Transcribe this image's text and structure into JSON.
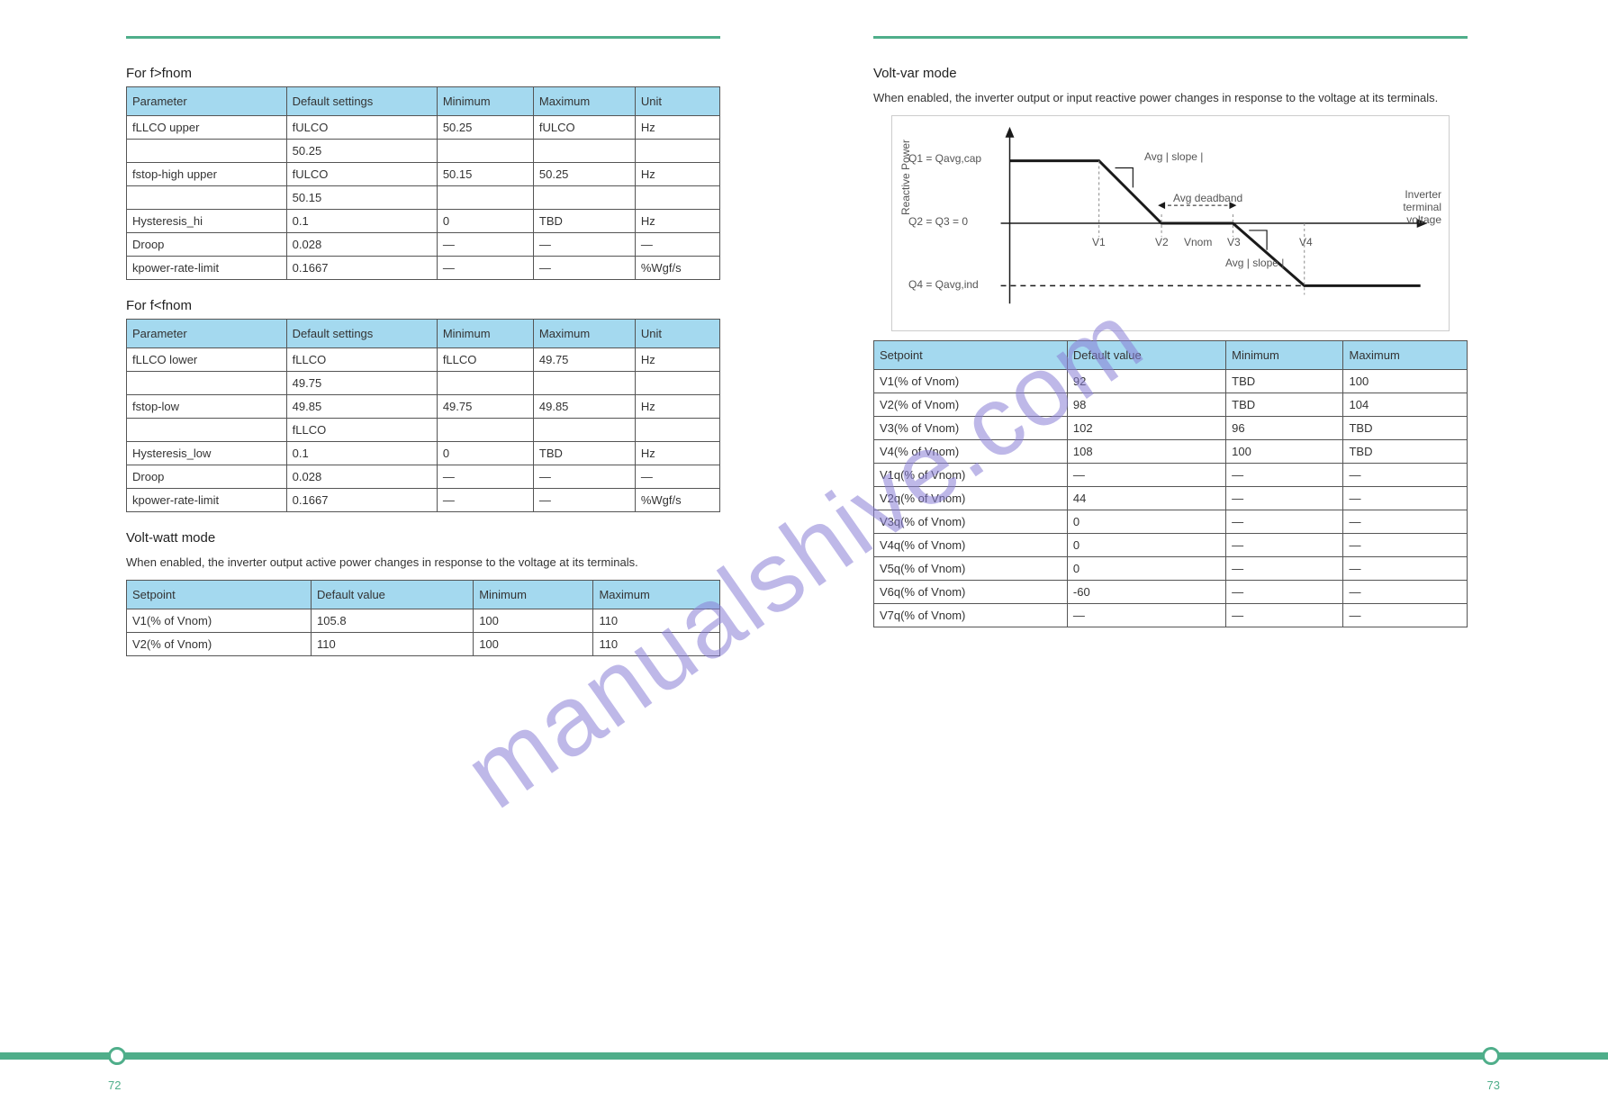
{
  "watermark": "manualshive.com",
  "left": {
    "section_a": {
      "title": "For f>fnom",
      "headers": [
        "Parameter",
        "Default settings",
        "Minimum",
        "Maximum",
        "Unit"
      ],
      "rows": [
        [
          "fLLCO upper",
          "fULCO",
          "50.25",
          "fULCO",
          "Hz"
        ],
        [
          "",
          "50.25",
          "",
          "",
          ""
        ],
        [
          "fstop-high upper",
          "fULCO",
          "50.15",
          "50.25",
          "Hz"
        ],
        [
          "",
          "50.15",
          "",
          "",
          ""
        ],
        [
          "Hysteresis_hi",
          "0.1",
          "0",
          "TBD",
          "Hz"
        ],
        [
          "Droop",
          "0.028",
          "—",
          "—",
          "—"
        ],
        [
          "kpower-rate-limit",
          "0.1667",
          "—",
          "—",
          "%Wgf/s"
        ]
      ]
    },
    "section_b": {
      "title": "For f<fnom",
      "headers": [
        "Parameter",
        "Default settings",
        "Minimum",
        "Maximum",
        "Unit"
      ],
      "rows": [
        [
          "fLLCO lower",
          "fLLCO",
          "fLLCO",
          "49.75",
          "Hz"
        ],
        [
          "",
          "49.75",
          "",
          "",
          ""
        ],
        [
          "fstop-low",
          "49.85",
          "49.75",
          "49.85",
          "Hz"
        ],
        [
          "",
          "fLLCO",
          "",
          "",
          ""
        ],
        [
          "Hysteresis_low",
          "0.1",
          "0",
          "TBD",
          "Hz"
        ],
        [
          "Droop",
          "0.028",
          "—",
          "—",
          "—"
        ],
        [
          "kpower-rate-limit",
          "0.1667",
          "—",
          "—",
          "%Wgf/s"
        ]
      ]
    },
    "section_c": {
      "title": "Volt-watt mode",
      "body": "When enabled, the inverter output active power changes in response to the voltage at its terminals.",
      "headers": [
        "Setpoint",
        "Default value",
        "Minimum",
        "Maximum"
      ],
      "rows": [
        [
          "V1(% of Vnom)",
          "105.8",
          "100",
          "110"
        ],
        [
          "V2(% of Vnom)",
          "110",
          "100",
          "110"
        ]
      ]
    }
  },
  "right": {
    "section_d": {
      "title": "Volt-var mode",
      "body": "When enabled, the inverter output or input reactive power changes in response to the voltage at its terminals.",
      "chart_caption_left_top": "Q1 = Qavg,cap",
      "chart_caption_left_mid": "Q2 = Q3 = 0",
      "chart_caption_left_bot": "Q4 = Qavg,ind",
      "chart_caption_right": "Inverter terminal voltage",
      "chart_ylabel": "Reactive Power",
      "chart_v1": "V1",
      "chart_v2": "V2",
      "chart_vnom": "Vnom",
      "chart_v3": "V3",
      "chart_v4": "V4",
      "chart_slope1": "Avg | slope |",
      "chart_deadband": "Avg deadband",
      "chart_slope2": "Avg | slope |",
      "headers": [
        "Setpoint",
        "Default value",
        "Minimum",
        "Maximum"
      ],
      "rows": [
        [
          "V1(% of Vnom)",
          "92",
          "TBD",
          "100"
        ],
        [
          "V2(% of Vnom)",
          "98",
          "TBD",
          "104"
        ],
        [
          "V3(% of Vnom)",
          "102",
          "96",
          "TBD"
        ],
        [
          "V4(% of Vnom)",
          "108",
          "100",
          "TBD"
        ],
        [
          "V1q(% of Vnom)",
          "—",
          "—",
          "—"
        ],
        [
          "V2q(% of Vnom)",
          "44",
          "—",
          "—"
        ],
        [
          "V3q(% of Vnom)",
          "0",
          "—",
          "—"
        ],
        [
          "V4q(% of Vnom)",
          "0",
          "—",
          "—"
        ],
        [
          "V5q(% of Vnom)",
          "0",
          "—",
          "—"
        ],
        [
          "V6q(% of Vnom)",
          "-60",
          "—",
          "—"
        ],
        [
          "V7q(% of Vnom)",
          "—",
          "—",
          "—"
        ]
      ]
    }
  },
  "page_num_left": "72",
  "page_num_right": "73",
  "chart": {
    "line_color": "#1a1a1a",
    "dash_color": "#1a1a1a",
    "grid_color": "#888888"
  }
}
